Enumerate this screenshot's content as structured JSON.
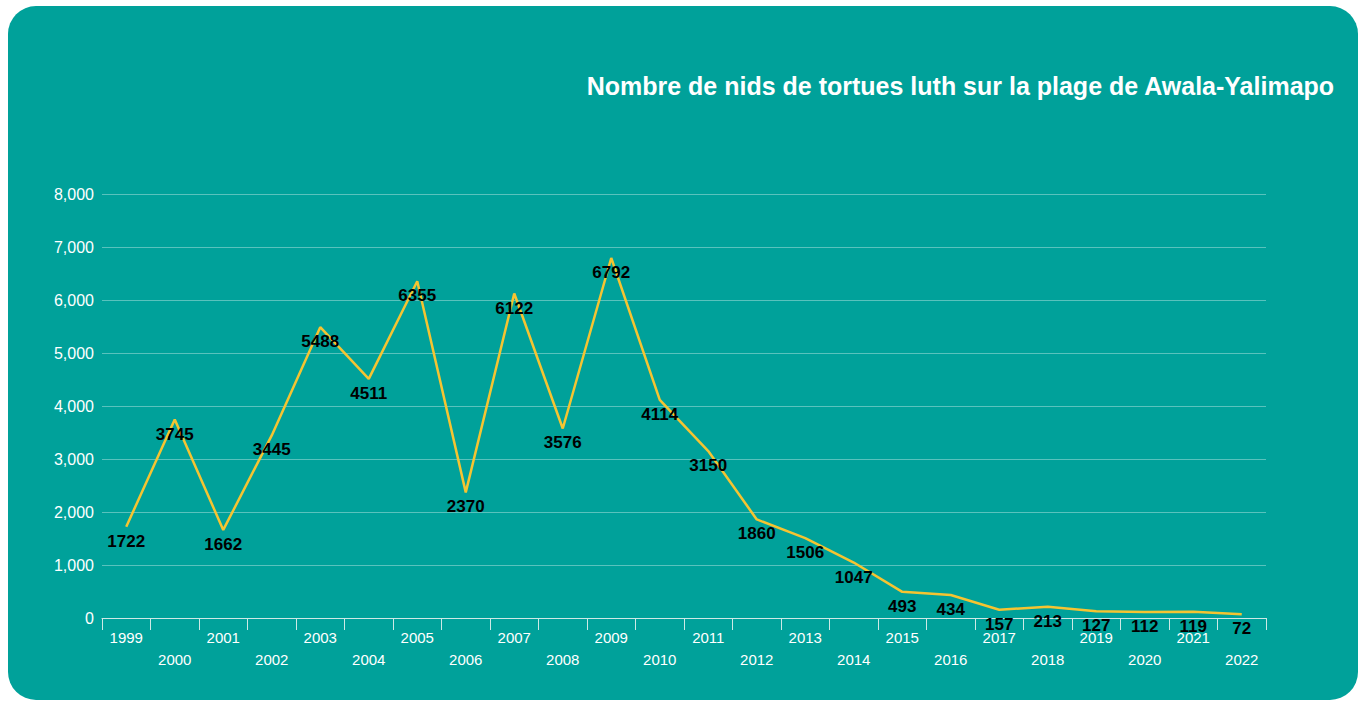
{
  "chart_data": {
    "type": "line",
    "title": "Nombre de nids de tortues luth sur la plage de Awala-Yalimapo",
    "categories": [
      "1999",
      "2000",
      "2001",
      "2002",
      "2003",
      "2004",
      "2005",
      "2006",
      "2007",
      "2008",
      "2009",
      "2010",
      "2011",
      "2012",
      "2013",
      "2014",
      "2015",
      "2016",
      "2017",
      "2018",
      "2019",
      "2020",
      "2021",
      "2022"
    ],
    "values": [
      1722,
      3745,
      1662,
      3445,
      5488,
      4511,
      6355,
      2370,
      6122,
      3576,
      6792,
      4114,
      3150,
      1860,
      1506,
      1047,
      493,
      434,
      157,
      213,
      127,
      112,
      119,
      72
    ],
    "color": "#f5c431",
    "ylim": [
      0,
      8000
    ],
    "yticks": [
      0,
      1000,
      2000,
      3000,
      4000,
      5000,
      6000,
      7000,
      8000
    ],
    "grid": true,
    "data_labels": true
  }
}
